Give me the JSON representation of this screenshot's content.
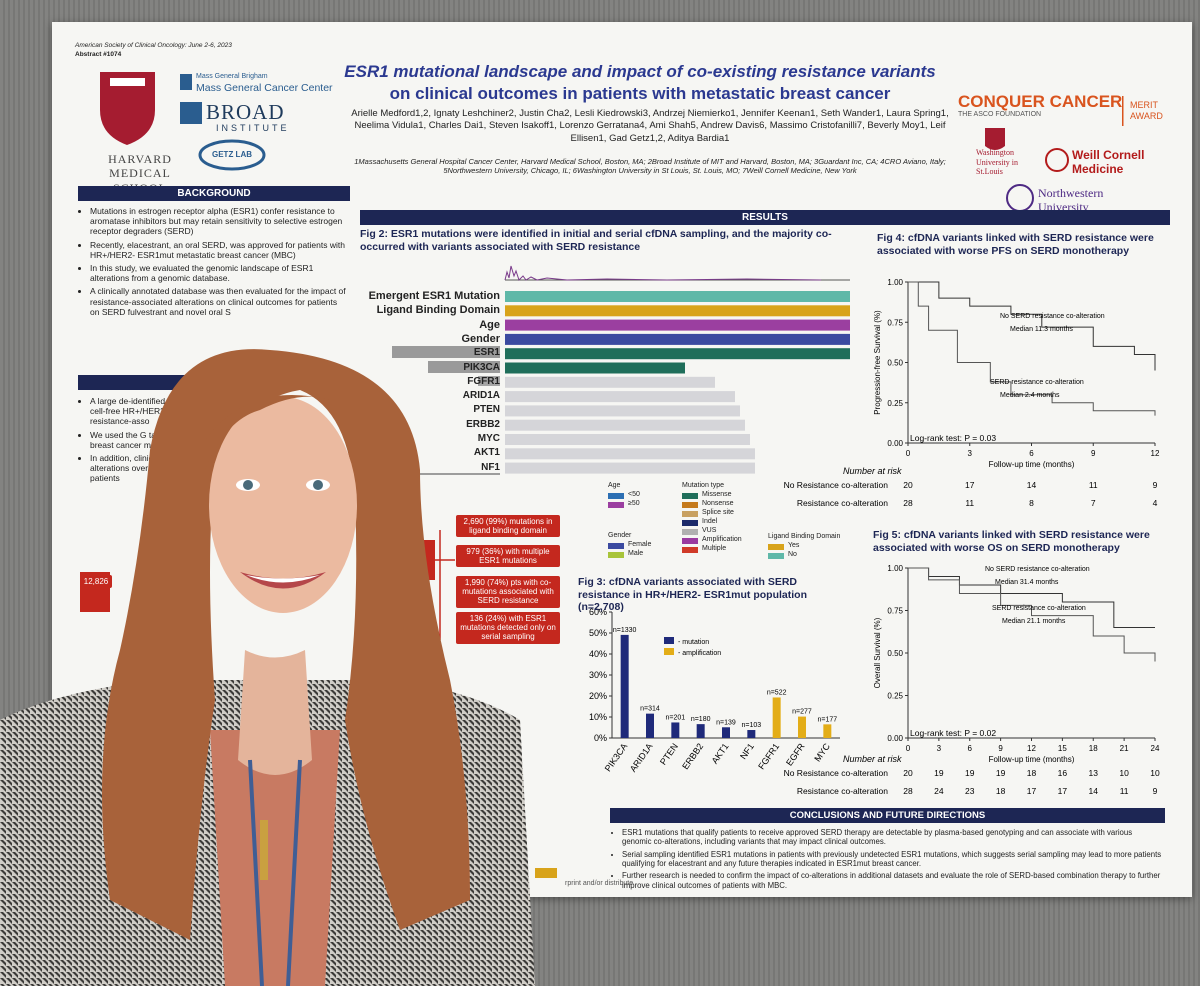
{
  "poster": {
    "header": {
      "conference": "American Society of Clinical Oncology: June 2-6, 2023",
      "abstract": "Abstract #1074",
      "title_line1": "ESR1 mutational landscape and impact of co-existing resistance variants",
      "title_line2": "on clinical outcomes in patients with metastatic breast cancer",
      "authors": "Arielle Medford1,2, Ignaty Leshchiner2, Justin Cha2, Lesli Kiedrowski3, Andrzej Niemierko1, Jennifer Keenan1, Seth Wander1, Laura Spring1, Neelima Vidula1, Charles Dai1, Steven Isakoff1, Lorenzo Gerratana4, Ami Shah5, Andrew Davis6, Massimo Cristofanilli7, Beverly Moy1, Leif Ellisen1, Gad Getz1,2, Aditya Bardia1",
      "affiliations": "1Massachusetts General Hospital Cancer Center, Harvard Medical School, Boston, MA; 2Broad Institute of MIT and Harvard, Boston, MA; 3Guardant Inc, CA; 4CRO Aviano, Italy; 5Northwestern University, Chicago, IL; 6Washington University in St Louis, St. Louis, MO; 7Weill Cornell Medicine, New York"
    },
    "logos": {
      "harvard": "HARVARD MEDICAL SCHOOL",
      "mgb": "Mass General Brigham",
      "mgcc": "Mass General Cancer Center",
      "broad": "BROAD",
      "broad_sub": "INSTITUTE",
      "getz": "GETZ LAB",
      "conquer": "CONQUER CANCER",
      "asco": "THE ASCO FOUNDATION",
      "merit": "MERIT AWARD",
      "washu": "Washington University in St.Louis",
      "weill": "Weill Cornell Medicine",
      "northwestern": "Northwestern University"
    },
    "background": {
      "heading": "BACKGROUND",
      "bullets": [
        "Mutations in estrogen receptor alpha (ESR1) confer resistance to aromatase inhibitors but may retain sensitivity to selective estrogen receptor degraders (SERD)",
        "Recently, elacestrant, an oral SERD, was approved for patients with HR+/HER2- ESR1mut metastatic breast cancer (MBC)",
        "In this study, we evaluated the genomic landscape of ESR1 alterations from a genomic database.",
        "A clinically annotated database was then evaluated for the impact of resistance-associated alterations on clinical outcomes for patients on SERD fulvestrant and novel oral S"
      ]
    },
    "methods": {
      "bullets": [
        "A large de-identified plasma cell-free HR+/HER2- MB resistance-asso",
        "We used the G targeted next breast cancer mutations (B",
        "In addition, clinically an alterations overall su patients"
      ]
    },
    "results_heading": "RESULTS",
    "fig2": {
      "title": "Fig 2: ESR1 mutations were identified in initial and serial cfDNA sampling, and the majority co-occurred with variants associated with SERD resistance",
      "rows": [
        "Emergent ESR1 Mutation",
        "Ligand Binding Domain",
        "Age",
        "Gender",
        "ESR1",
        "PIK3CA",
        "FGFR1",
        "ARID1A",
        "PTEN",
        "ERBB2",
        "MYC",
        "AKT1",
        "NF1"
      ],
      "axis_tick": "2500",
      "legend": [
        {
          "title": "Age",
          "items": [
            {
              "label": "<50",
              "color": "#2c6fb3"
            },
            {
              "label": "≥50",
              "color": "#9b3fa0"
            }
          ]
        },
        {
          "title": "Gender",
          "items": [
            {
              "label": "Female",
              "color": "#3b4aa0"
            },
            {
              "label": "Male",
              "color": "#a8c43a"
            }
          ]
        },
        {
          "title": "Mutation type",
          "items": [
            {
              "label": "Missense",
              "color": "#1f6e5a"
            },
            {
              "label": "Nonsense",
              "color": "#c57a1c"
            },
            {
              "label": "Splice site",
              "color": "#c8a060"
            },
            {
              "label": "Indel",
              "color": "#1c2a6a"
            },
            {
              "label": "VUS",
              "color": "#b0b0b0"
            },
            {
              "label": "Amplification",
              "color": "#9a3aa0"
            },
            {
              "label": "Multiple",
              "color": "#d03a28"
            }
          ]
        },
        {
          "title": "Ligand Binding Domain",
          "items": [
            {
              "label": "Yes",
              "color": "#d8a31a"
            },
            {
              "label": "No",
              "color": "#5fb8a8"
            }
          ]
        }
      ]
    },
    "flow": {
      "left_box": "12,826",
      "boxes": [
        "2,690 (99%) mutations in ligand binding domain",
        "979 (36%) with multiple ESR1 mutations",
        "1,990 (74%) pts with co-mutations associated with SERD resistance",
        "136 (24%) with ESR1 mutations detected only on serial sampling"
      ]
    },
    "fig3": {
      "type": "bar",
      "title": "Fig 3: cfDNA variants associated with SERD resistance in HR+/HER2- ESR1mut population (n=2,708)",
      "categories": [
        "PIK3CA",
        "ARID1A",
        "PTEN",
        "ERBB2",
        "AKT1",
        "NF1",
        "FGFR1",
        "EGFR",
        "MYC"
      ],
      "series": [
        {
          "name": "- mutation",
          "color": "#1f2a7a",
          "values": [
            49.1,
            11.6,
            7.4,
            6.6,
            5.1,
            3.8,
            null,
            null,
            null
          ],
          "value_labels": [
            "n=1330",
            "n=314",
            "n=201",
            "n=180",
            "n=139",
            "n=103",
            null,
            null,
            null
          ]
        },
        {
          "name": "- amplification",
          "color": "#e3ad17",
          "values": [
            null,
            null,
            null,
            null,
            null,
            null,
            19.3,
            10.2,
            6.5
          ],
          "value_labels": [
            null,
            null,
            null,
            null,
            null,
            null,
            "n=522",
            "n=277",
            "n=177"
          ]
        }
      ],
      "ylim": [
        0,
        60
      ],
      "yticks": [
        {
          "value": 0,
          "label": "0%"
        },
        {
          "value": 10,
          "label": "10%"
        },
        {
          "value": 20,
          "label": "20%"
        },
        {
          "value": 30,
          "label": "30%"
        },
        {
          "value": 40,
          "label": "40%"
        },
        {
          "value": 50,
          "label": "50%"
        },
        {
          "value": 60,
          "label": "60%"
        }
      ]
    },
    "fig4": {
      "type": "line",
      "title": "Fig 4: cfDNA variants linked with SERD resistance were associated with worse PFS on SERD monotherapy",
      "ylabel": "Progression-free Survival (%)",
      "xlabel": "Follow-up time (months)",
      "xlim": [
        0,
        12
      ],
      "xticks": [
        0,
        3,
        6,
        9,
        12
      ],
      "ylim": [
        0,
        1
      ],
      "yticks": [
        {
          "value": 0,
          "label": "0.00"
        },
        {
          "value": 0.25,
          "label": "0.25"
        },
        {
          "value": 0.5,
          "label": "0.50"
        },
        {
          "value": 0.75,
          "label": "0.75"
        },
        {
          "value": 1,
          "label": "1.00"
        }
      ],
      "series": [
        {
          "name": "No SERD resistance co-alteration",
          "color": "#333333",
          "x": [
            0,
            1.5,
            3,
            5,
            6.5,
            9,
            11,
            12
          ],
          "values": [
            1,
            0.9,
            0.85,
            0.8,
            0.72,
            0.6,
            0.55,
            0.45
          ]
        },
        {
          "name": "SERD resistance co-alteration",
          "color": "#555555",
          "x": [
            0,
            0.5,
            1,
            2.4,
            4,
            5,
            7,
            9,
            12
          ],
          "values": [
            1,
            0.85,
            0.7,
            0.5,
            0.38,
            0.3,
            0.25,
            0.2,
            0.17
          ]
        }
      ],
      "medians": [
        "Median 11.3 months",
        "Median 2.4 months"
      ],
      "logrank": "Log-rank test: P = 0.03",
      "risk_title": "Number at risk",
      "risk_rows": [
        {
          "label": "No Resistance co-alteration",
          "values": [
            20,
            17,
            14,
            11,
            9
          ]
        },
        {
          "label": "Resistance co-alteration",
          "values": [
            28,
            11,
            8,
            7,
            4
          ]
        }
      ]
    },
    "fig5": {
      "type": "line",
      "title": "Fig 5: cfDNA variants linked with SERD resistance were associated with worse OS on SERD monotherapy",
      "ylabel": "Overall Survival (%)",
      "xlabel": "Follow-up time (months)",
      "xlim": [
        0,
        24
      ],
      "xticks": [
        0,
        3,
        6,
        9,
        12,
        15,
        18,
        21,
        24
      ],
      "ylim": [
        0,
        1
      ],
      "yticks": [
        {
          "value": 0,
          "label": "0.00"
        },
        {
          "value": 0.25,
          "label": "0.25"
        },
        {
          "value": 0.5,
          "label": "0.50"
        },
        {
          "value": 0.75,
          "label": "0.75"
        },
        {
          "value": 1,
          "label": "1.00"
        }
      ],
      "series": [
        {
          "name": "No SERD resistance co-alteration",
          "color": "#333333",
          "x": [
            0,
            2,
            5,
            9,
            15,
            20,
            24
          ],
          "values": [
            1,
            0.95,
            0.9,
            0.85,
            0.8,
            0.65,
            0.65
          ]
        },
        {
          "name": "SERD resistance co-alteration",
          "color": "#555555",
          "x": [
            0,
            2,
            5,
            9,
            12,
            18,
            21,
            24
          ],
          "values": [
            1,
            0.93,
            0.85,
            0.78,
            0.72,
            0.6,
            0.5,
            0.45
          ]
        }
      ],
      "medians": [
        "Median 31.4 months",
        "Median 21.1 months"
      ],
      "logrank": "Log-rank test: P = 0.02",
      "risk_title": "Number at risk",
      "risk_rows": [
        {
          "label": "No Resistance co-alteration",
          "values": [
            20,
            19,
            19,
            19,
            18,
            16,
            13,
            10,
            10
          ]
        },
        {
          "label": "Resistance co-alteration",
          "values": [
            28,
            24,
            23,
            18,
            17,
            17,
            14,
            11,
            9
          ]
        }
      ]
    },
    "conclusions": {
      "heading": "CONCLUSIONS AND FUTURE DIRECTIONS",
      "bullets": [
        "ESR1 mutations that qualify patients to receive approved SERD therapy are detectable by plasma-based genotyping and can associate with various genomic co-alterations, including variants that may impact clinical outcomes.",
        "Serial sampling identified ESR1 mutations in patients with previously undetected ESR1 mutations, which suggests serial sampling may lead to more patients qualifying for elacestrant and any future therapies indicated in ESR1mut breast cancer.",
        "Further research is needed to confirm the impact of co-alterations in additional datasets and evaluate the role of SERD-based combination therapy to further improve clinical outcomes of patients with MBC."
      ],
      "footer": "rprint and/or distribute"
    }
  }
}
